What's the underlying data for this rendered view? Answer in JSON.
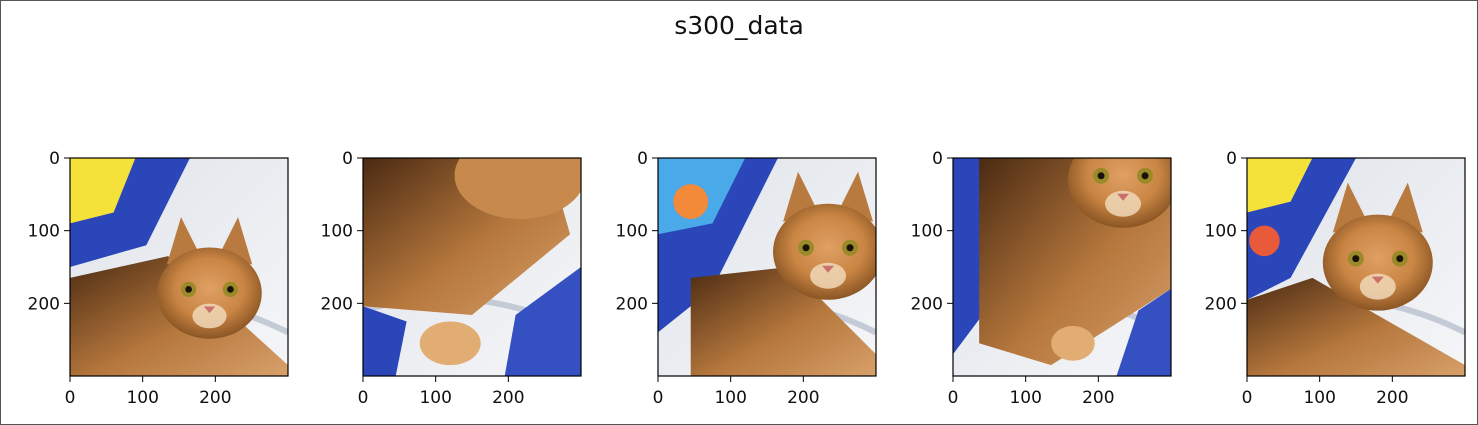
{
  "figure": {
    "title": "s300_data"
  },
  "chart_data": {
    "type": "image-grid",
    "title": "s300_data",
    "panels": [
      {
        "subject": "orange tabby cat, head and shoulders, lower-right, behind blue/yellow bag",
        "xticks": [
          "0",
          "100",
          "200"
        ],
        "yticks": [
          "0",
          "100",
          "200"
        ],
        "xlim": [
          0,
          300
        ],
        "ylim": [
          300,
          0
        ]
      },
      {
        "subject": "orange tabby cat, body and paw, lower-left crop",
        "xticks": [
          "0",
          "100",
          "200"
        ],
        "yticks": [
          "0",
          "100",
          "200"
        ],
        "xlim": [
          0,
          300
        ],
        "ylim": [
          300,
          0
        ]
      },
      {
        "subject": "orange tabby cat, face center-right, blue bag at left",
        "xticks": [
          "0",
          "100",
          "200"
        ],
        "yticks": [
          "0",
          "100",
          "200"
        ],
        "xlim": [
          0,
          300
        ],
        "ylim": [
          300,
          0
        ]
      },
      {
        "subject": "orange tabby cat, face top-right crop, blue bag at left",
        "xticks": [
          "0",
          "100",
          "200"
        ],
        "yticks": [
          "0",
          "100",
          "200"
        ],
        "xlim": [
          0,
          300
        ],
        "ylim": [
          300,
          0
        ]
      },
      {
        "subject": "orange tabby cat, face center, blue/yellow bag at upper-left",
        "xticks": [
          "0",
          "100",
          "200"
        ],
        "yticks": [
          "0",
          "100",
          "200"
        ],
        "xlim": [
          0,
          300
        ],
        "ylim": [
          300,
          0
        ]
      }
    ]
  }
}
